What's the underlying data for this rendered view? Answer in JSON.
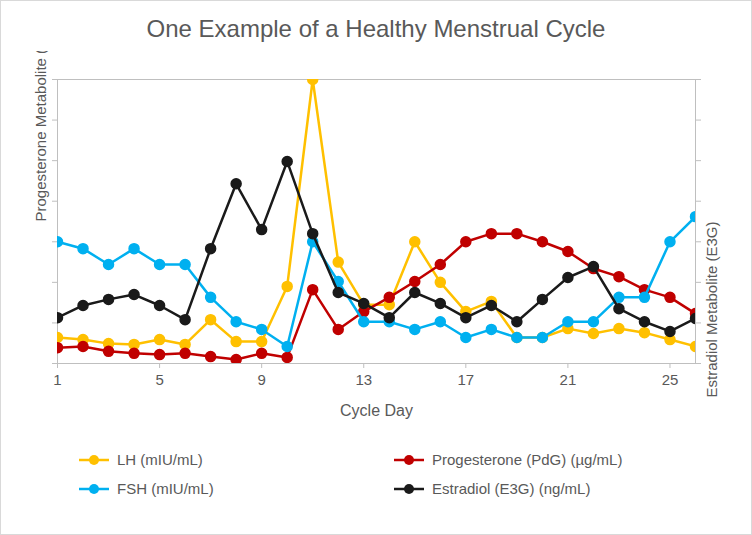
{
  "chart_data": {
    "type": "line",
    "title": "One Example of a Healthy Menstrual Cycle",
    "x_label": "Cycle Day",
    "y_label": "Progesterone Metabolite (PdG), FSH, & LH",
    "y2_label": "Estradiol Metabolite (E3G)",
    "x": [
      1,
      2,
      3,
      4,
      5,
      6,
      7,
      8,
      9,
      10,
      11,
      12,
      13,
      14,
      15,
      16,
      17,
      18,
      19,
      20,
      21,
      22,
      23,
      24,
      25,
      26
    ],
    "xlim": [
      1,
      26
    ],
    "xticks": [
      1,
      5,
      9,
      13,
      17,
      21,
      25
    ],
    "ylim": [
      0,
      7
    ],
    "yticks": [
      0,
      1,
      2,
      3,
      4,
      5,
      6,
      7
    ],
    "y2lim": [
      0,
      7
    ],
    "y2ticks": [
      0,
      1,
      2,
      3,
      4,
      5,
      6,
      7
    ],
    "tick_labels": "x",
    "grid": false,
    "legend": "bottom",
    "marker": "circle",
    "series": [
      {
        "name": "LH (mIU/mL)",
        "color": "#FFC000",
        "values": [
          0.64,
          0.59,
          0.49,
          0.47,
          0.59,
          0.47,
          1.08,
          0.54,
          0.54,
          1.9,
          7.0,
          2.5,
          1.45,
          1.45,
          3.0,
          2.0,
          1.28,
          1.53,
          0.64,
          0.64,
          0.86,
          0.74,
          0.86,
          0.76,
          0.59,
          0.42
        ]
      },
      {
        "name": "Progesterone (PdG) (µg/mL)",
        "color": "#C00000",
        "values": [
          0.39,
          0.42,
          0.3,
          0.25,
          0.22,
          0.25,
          0.17,
          0.1,
          0.25,
          0.15,
          1.82,
          0.84,
          1.28,
          1.63,
          2.02,
          2.44,
          3.0,
          3.2,
          3.2,
          3.0,
          2.76,
          2.34,
          2.14,
          1.82,
          1.63,
          1.23
        ]
      },
      {
        "name": "FSH (mIU/mL)",
        "color": "#00B0F0",
        "values": [
          3.0,
          2.83,
          2.44,
          2.83,
          2.44,
          2.44,
          1.63,
          1.03,
          0.84,
          0.42,
          3.0,
          2.02,
          1.03,
          1.03,
          0.84,
          1.03,
          0.64,
          0.84,
          0.64,
          0.64,
          1.03,
          1.03,
          1.63,
          1.63,
          3.0,
          3.62
        ]
      },
      {
        "name": "Estradiol (E3G) (ng/mL)",
        "color": "#1a1a1a",
        "axis": "y2",
        "values": [
          1.13,
          1.43,
          1.58,
          1.7,
          1.43,
          1.08,
          2.83,
          4.43,
          3.3,
          4.98,
          3.2,
          1.75,
          1.48,
          1.13,
          1.75,
          1.48,
          1.13,
          1.43,
          1.03,
          1.58,
          2.12,
          2.39,
          1.35,
          1.03,
          0.79,
          1.11
        ]
      }
    ]
  }
}
